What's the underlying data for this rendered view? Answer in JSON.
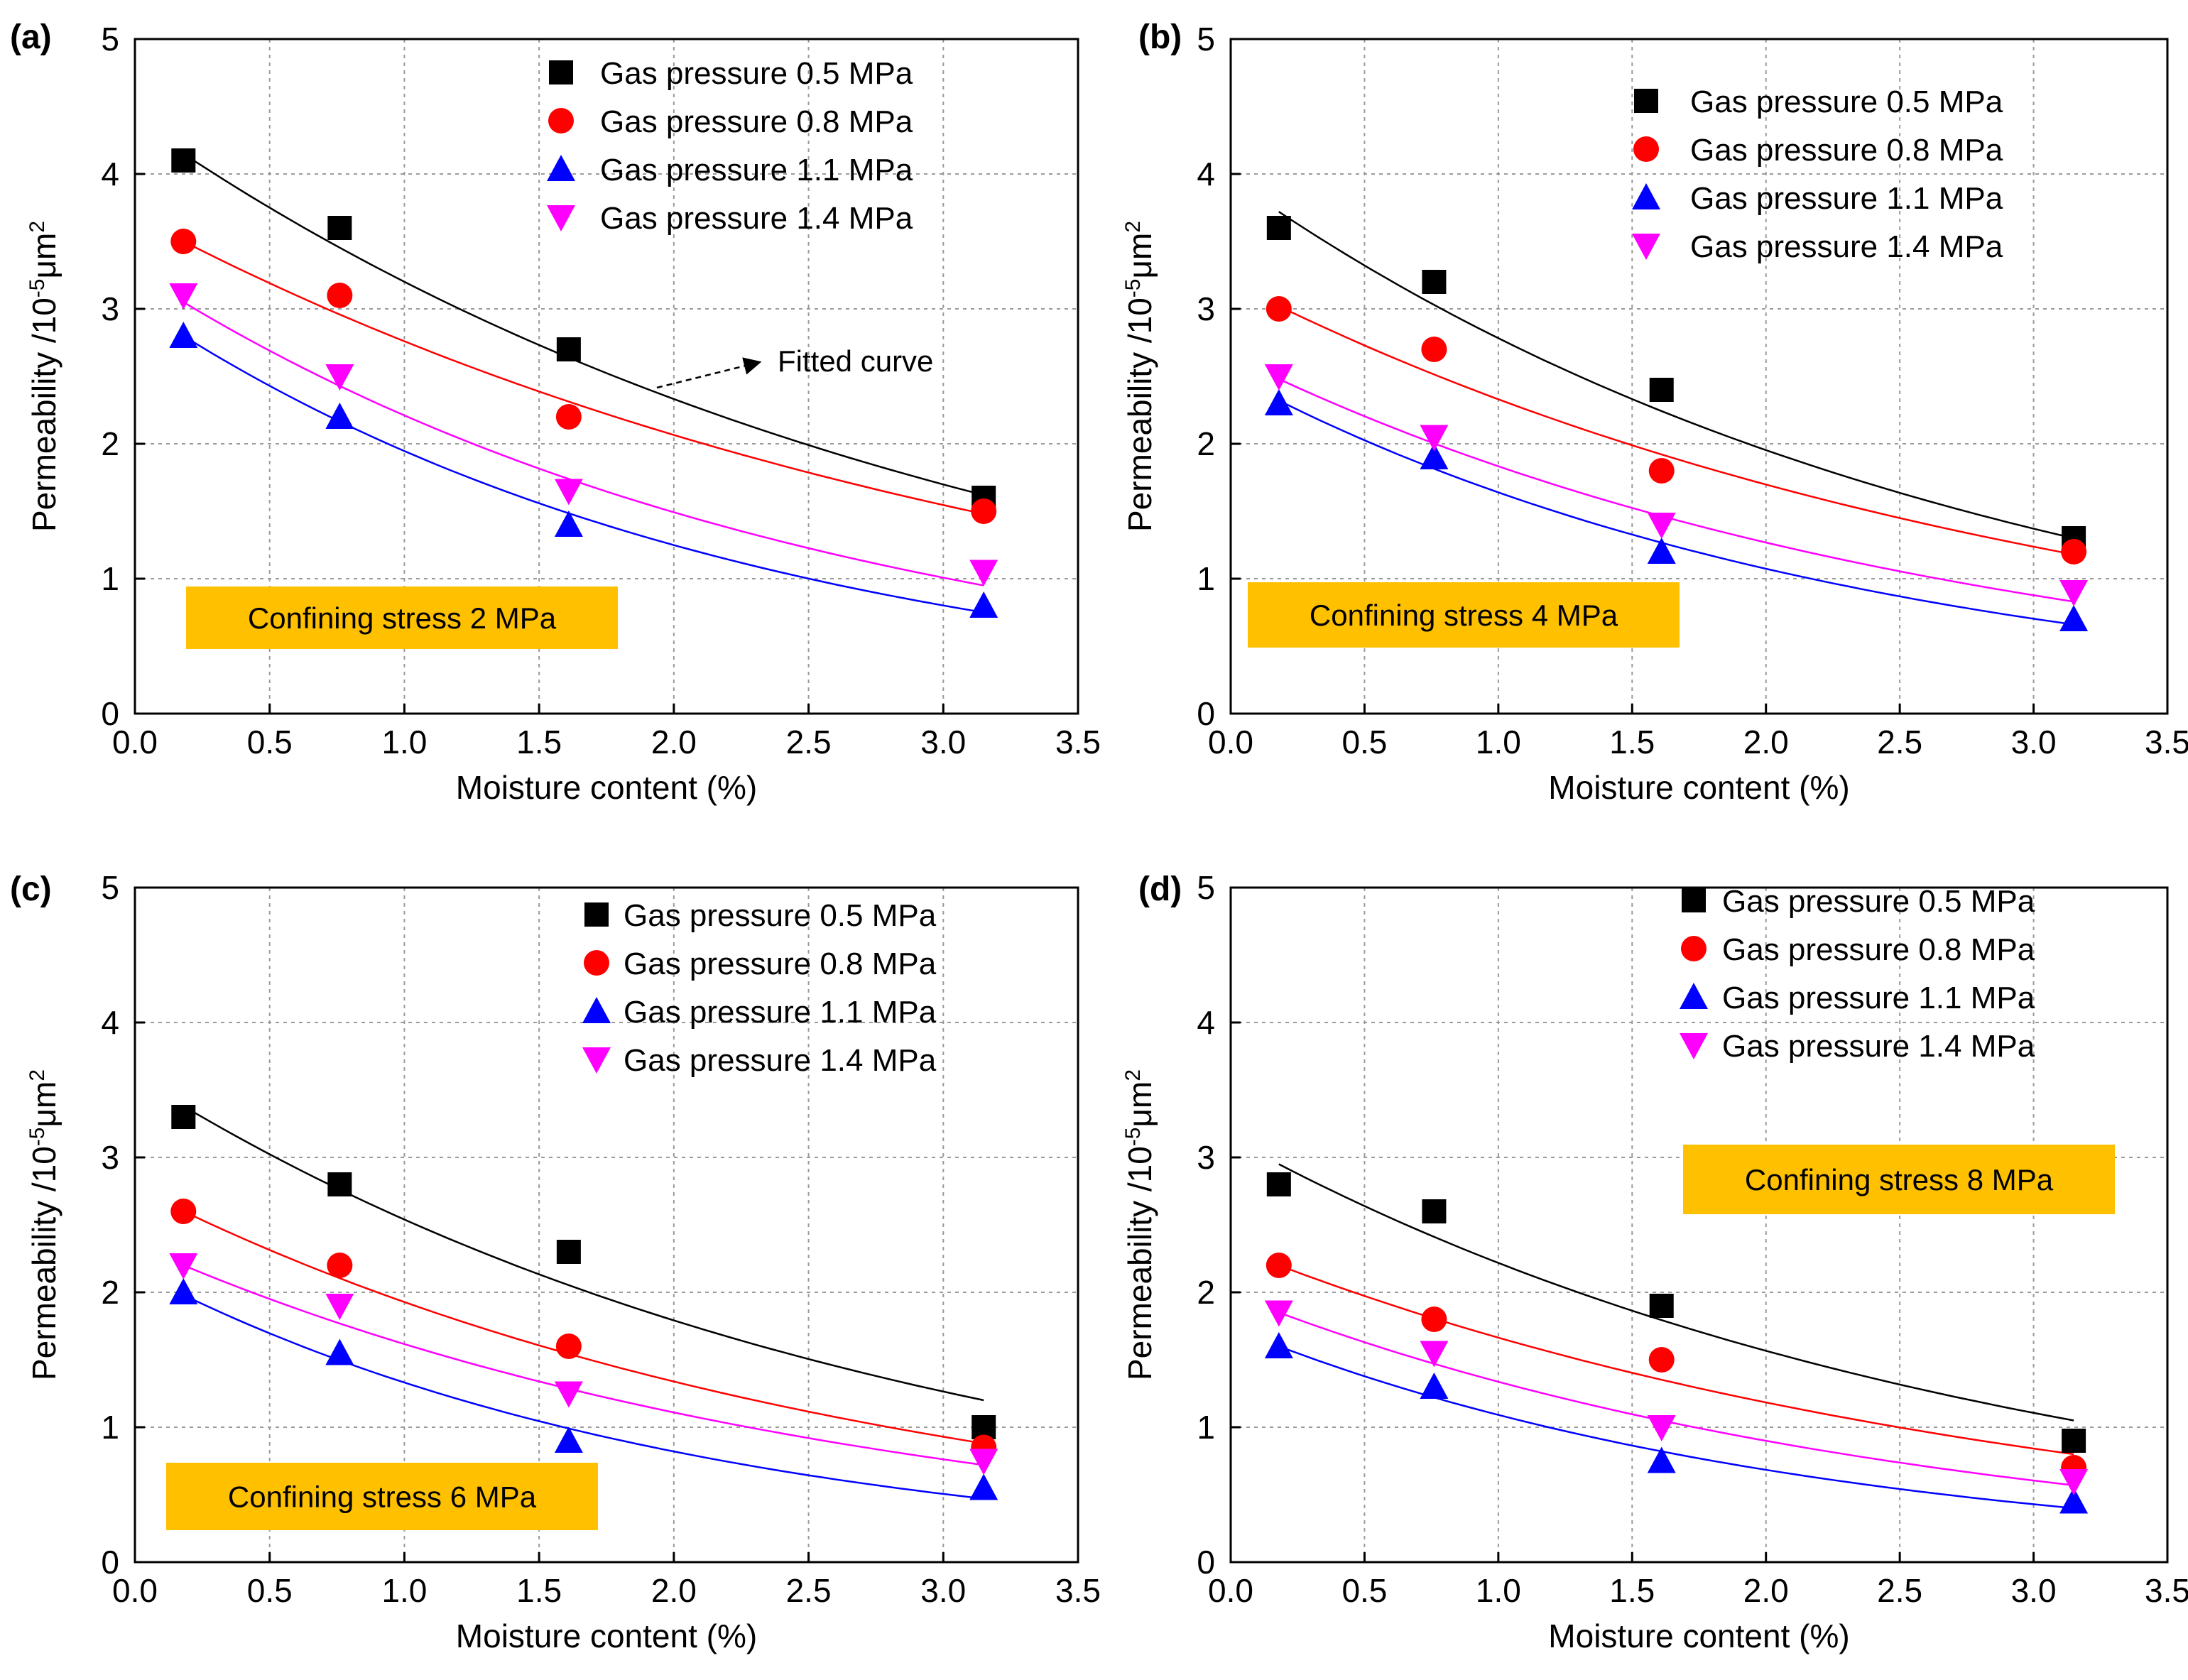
{
  "colors": {
    "series": [
      "#000000",
      "#ff0000",
      "#0000ff",
      "#ff00ff"
    ],
    "stress_box": "#ffc000",
    "grid": "#9a9a9a"
  },
  "chart_data": [
    {
      "type": "scatter",
      "panel_label": "(a)",
      "xlabel": "Moisture content (%)",
      "ylabel": "Permeability /10",
      "ylabel_sup": "-5",
      "ylabel_unit": "μm",
      "ylabel_unit_sup": "2",
      "xlim": [
        0,
        3.5
      ],
      "ylim": [
        0,
        5
      ],
      "xticks": [
        "0.0",
        "0.5",
        "1.0",
        "1.5",
        "2.0",
        "2.5",
        "3.0",
        "3.5"
      ],
      "yticks": [
        "0",
        "1",
        "2",
        "3",
        "4",
        "5"
      ],
      "grid": true,
      "legend_position": "top-right",
      "x": [
        0.18,
        0.76,
        1.61,
        3.15
      ],
      "series": [
        {
          "name": "Gas pressure 0.5 MPa",
          "marker": "square",
          "values": [
            4.1,
            3.6,
            2.7,
            1.6
          ],
          "fit": [
            4.15,
            1.62
          ]
        },
        {
          "name": "Gas pressure 0.8 MPa",
          "marker": "circle",
          "values": [
            3.5,
            3.1,
            2.2,
            1.5
          ],
          "fit": [
            3.5,
            1.48
          ]
        },
        {
          "name": "Gas pressure 1.1 MPa",
          "marker": "triangle-up",
          "values": [
            2.8,
            2.2,
            1.4,
            0.8
          ],
          "fit": [
            2.8,
            0.75
          ]
        },
        {
          "name": "Gas pressure 1.4 MPa",
          "marker": "triangle-down",
          "values": [
            3.1,
            2.5,
            1.65,
            1.05
          ],
          "fit": [
            3.05,
            0.95
          ]
        }
      ],
      "stress_label": "Confining stress 2 MPa",
      "stress_position": "bottom-left",
      "annotation": "Fitted curve"
    },
    {
      "type": "scatter",
      "panel_label": "(b)",
      "xlabel": "Moisture content (%)",
      "ylabel": "Permeability /10",
      "ylabel_sup": "-5",
      "ylabel_unit": "μm",
      "ylabel_unit_sup": "2",
      "xlim": [
        0,
        3.5
      ],
      "ylim": [
        0,
        5
      ],
      "xticks": [
        "0.0",
        "0.5",
        "1.0",
        "1.5",
        "2.0",
        "2.5",
        "3.0",
        "3.5"
      ],
      "yticks": [
        "0",
        "1",
        "2",
        "3",
        "4",
        "5"
      ],
      "grid": true,
      "legend_position": "top-right",
      "x": [
        0.18,
        0.76,
        1.61,
        3.15
      ],
      "series": [
        {
          "name": "Gas pressure 0.5 MPa",
          "marker": "square",
          "values": [
            3.6,
            3.2,
            2.4,
            1.3
          ],
          "fit": [
            3.72,
            1.3
          ]
        },
        {
          "name": "Gas pressure 0.8 MPa",
          "marker": "circle",
          "values": [
            3.0,
            2.7,
            1.8,
            1.2
          ],
          "fit": [
            3.02,
            1.18
          ]
        },
        {
          "name": "Gas pressure 1.1 MPa",
          "marker": "triangle-up",
          "values": [
            2.3,
            1.9,
            1.2,
            0.7
          ],
          "fit": [
            2.32,
            0.66
          ]
        },
        {
          "name": "Gas pressure 1.4 MPa",
          "marker": "triangle-down",
          "values": [
            2.5,
            2.05,
            1.4,
            0.9
          ],
          "fit": [
            2.48,
            0.83
          ]
        }
      ],
      "stress_label": "Confining stress 4 MPa",
      "stress_position": "bottom-left"
    },
    {
      "type": "scatter",
      "panel_label": "(c)",
      "xlabel": "Moisture content (%)",
      "ylabel": "Permeability /10",
      "ylabel_sup": "-5",
      "ylabel_unit": "μm",
      "ylabel_unit_sup": "2",
      "xlim": [
        0,
        3.5
      ],
      "ylim": [
        0,
        5
      ],
      "xticks": [
        "0.0",
        "0.5",
        "1.0",
        "1.5",
        "2.0",
        "2.5",
        "3.0",
        "3.5"
      ],
      "yticks": [
        "0",
        "1",
        "2",
        "3",
        "4",
        "5"
      ],
      "grid": true,
      "legend_position": "top-right",
      "x": [
        0.18,
        0.76,
        1.61,
        3.15
      ],
      "series": [
        {
          "name": "Gas pressure 0.5 MPa",
          "marker": "square",
          "values": [
            3.3,
            2.8,
            2.3,
            1.0
          ],
          "fit": [
            3.38,
            1.2
          ]
        },
        {
          "name": "Gas pressure 0.8 MPa",
          "marker": "circle",
          "values": [
            2.6,
            2.2,
            1.6,
            0.85
          ],
          "fit": [
            2.6,
            0.88
          ]
        },
        {
          "name": "Gas pressure 1.1 MPa",
          "marker": "triangle-up",
          "values": [
            2.0,
            1.55,
            0.9,
            0.55
          ],
          "fit": [
            1.98,
            0.47
          ]
        },
        {
          "name": "Gas pressure 1.4 MPa",
          "marker": "triangle-down",
          "values": [
            2.2,
            1.9,
            1.25,
            0.75
          ],
          "fit": [
            2.2,
            0.72
          ]
        }
      ],
      "stress_label": "Confining stress 6 MPa",
      "stress_position": "bottom-left"
    },
    {
      "type": "scatter",
      "panel_label": "(d)",
      "xlabel": "Moisture content (%)",
      "ylabel": "Permeability /10",
      "ylabel_sup": "-5",
      "ylabel_unit": "μm",
      "ylabel_unit_sup": "2",
      "xlim": [
        0,
        3.5
      ],
      "ylim": [
        0,
        5
      ],
      "xticks": [
        "0.0",
        "0.5",
        "1.0",
        "1.5",
        "2.0",
        "2.5",
        "3.0",
        "3.5"
      ],
      "yticks": [
        "0",
        "1",
        "2",
        "3",
        "4",
        "5"
      ],
      "grid": true,
      "legend_position": "top-right",
      "x": [
        0.18,
        0.76,
        1.61,
        3.15
      ],
      "series": [
        {
          "name": "Gas pressure 0.5 MPa",
          "marker": "square",
          "values": [
            2.8,
            2.6,
            1.9,
            0.9
          ],
          "fit": [
            2.95,
            1.05
          ]
        },
        {
          "name": "Gas pressure 0.8 MPa",
          "marker": "circle",
          "values": [
            2.2,
            1.8,
            1.5,
            0.7
          ],
          "fit": [
            2.2,
            0.8
          ]
        },
        {
          "name": "Gas pressure 1.1 MPa",
          "marker": "triangle-up",
          "values": [
            1.6,
            1.3,
            0.75,
            0.45
          ],
          "fit": [
            1.6,
            0.4
          ]
        },
        {
          "name": "Gas pressure 1.4 MPa",
          "marker": "triangle-down",
          "values": [
            1.85,
            1.55,
            1.0,
            0.6
          ],
          "fit": [
            1.85,
            0.57
          ]
        }
      ],
      "stress_label": "Confining stress 8 MPa",
      "stress_position": "top-right"
    }
  ]
}
